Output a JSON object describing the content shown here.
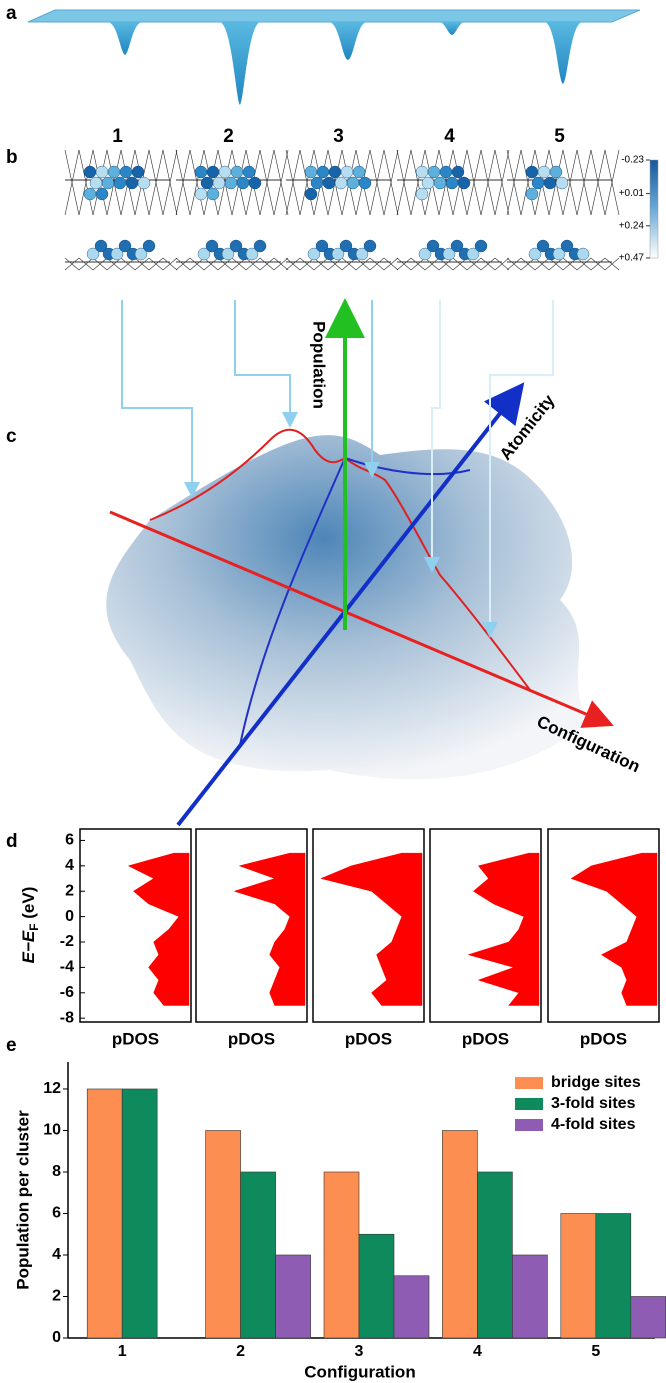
{
  "panel_labels": [
    "a",
    "b",
    "c",
    "d",
    "e"
  ],
  "panel_b": {
    "configurations": [
      "1",
      "2",
      "3",
      "4",
      "5"
    ],
    "colorbar_ticks": [
      -0.23,
      {
        "value": 0.01,
        "label": "+0.01"
      },
      {
        "value": 0.24,
        "label": "+0.24"
      },
      {
        "value": 0.47,
        "label": "+0.47"
      }
    ]
  },
  "panel_c": {
    "axis_labels": {
      "population": "Population",
      "atomicity": "Atomicity",
      "configuration": "Configuration"
    }
  },
  "chart_data": [
    {
      "type": "pdos",
      "y_label": {
        "main": "E−E",
        "sub": "F",
        "unit": " (eV)"
      },
      "x_label": "pDOS",
      "ylim": [
        -8.3,
        6.9
      ],
      "yticks": [
        6,
        4,
        2,
        0,
        -2,
        -4,
        -6,
        -8
      ],
      "energies": [
        -7,
        -6,
        -5,
        -4,
        -3,
        -2,
        -1,
        0,
        1,
        2,
        3,
        4,
        5
      ],
      "series": [
        {
          "color": "#ff0000",
          "values": [
            0.25,
            0.35,
            0.3,
            0.4,
            0.3,
            0.35,
            0.2,
            0.1,
            0.4,
            0.55,
            0.35,
            0.6,
            0.15
          ]
        },
        {
          "color": "#ff0000",
          "values": [
            0.3,
            0.35,
            0.3,
            0.25,
            0.35,
            0.3,
            0.2,
            0.15,
            0.3,
            0.7,
            0.3,
            0.65,
            0.15
          ]
        },
        {
          "color": "#ff0000",
          "values": [
            0.4,
            0.5,
            0.35,
            0.4,
            0.45,
            0.3,
            0.25,
            0.2,
            0.35,
            0.5,
            1.0,
            0.7,
            0.2
          ]
        },
        {
          "color": "#ff0000",
          "values": [
            0.3,
            0.2,
            0.6,
            0.25,
            0.7,
            0.3,
            0.2,
            0.15,
            0.45,
            0.65,
            0.5,
            0.6,
            0.1
          ]
        },
        {
          "color": "#ff0000",
          "values": [
            0.3,
            0.35,
            0.3,
            0.35,
            0.55,
            0.3,
            0.25,
            0.2,
            0.35,
            0.5,
            0.85,
            0.65,
            0.15
          ]
        }
      ]
    },
    {
      "type": "bar",
      "y_label": "Population per cluster",
      "x_label": "Configuration",
      "categories": [
        "1",
        "2",
        "3",
        "4",
        "5"
      ],
      "ylim": [
        0,
        13.3
      ],
      "yticks": [
        0,
        2,
        4,
        6,
        8,
        10,
        12
      ],
      "legend": "top-right",
      "series": [
        {
          "name": "bridge sites",
          "color": "#fb8e50",
          "values": [
            12,
            10,
            8,
            10,
            6
          ]
        },
        {
          "name": "3-fold sites",
          "color": "#0f8a5c",
          "values": [
            12,
            8,
            5,
            8,
            6
          ]
        },
        {
          "name": "4-fold sites",
          "color": "#8e5cb3",
          "values": [
            0,
            4,
            3,
            4,
            2
          ]
        }
      ]
    }
  ]
}
